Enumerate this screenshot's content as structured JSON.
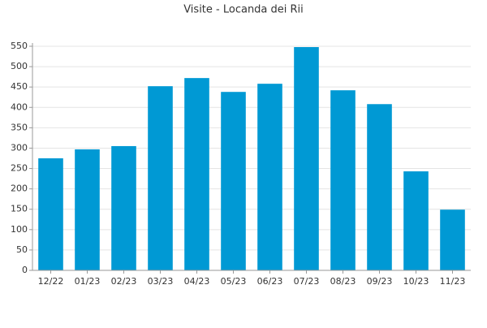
{
  "chart_data": {
    "type": "bar",
    "title": "Visite - Locanda dei Rii",
    "categories": [
      "12/22",
      "01/23",
      "02/23",
      "03/23",
      "04/23",
      "05/23",
      "06/23",
      "07/23",
      "08/23",
      "09/23",
      "10/23",
      "11/23"
    ],
    "values": [
      275,
      297,
      305,
      452,
      472,
      438,
      458,
      548,
      442,
      408,
      243,
      149
    ],
    "color": "#0099d4",
    "ylim": [
      0,
      550
    ],
    "yticks": [
      0,
      50,
      100,
      150,
      200,
      250,
      300,
      350,
      400,
      450,
      500,
      550
    ],
    "grid": true
  }
}
